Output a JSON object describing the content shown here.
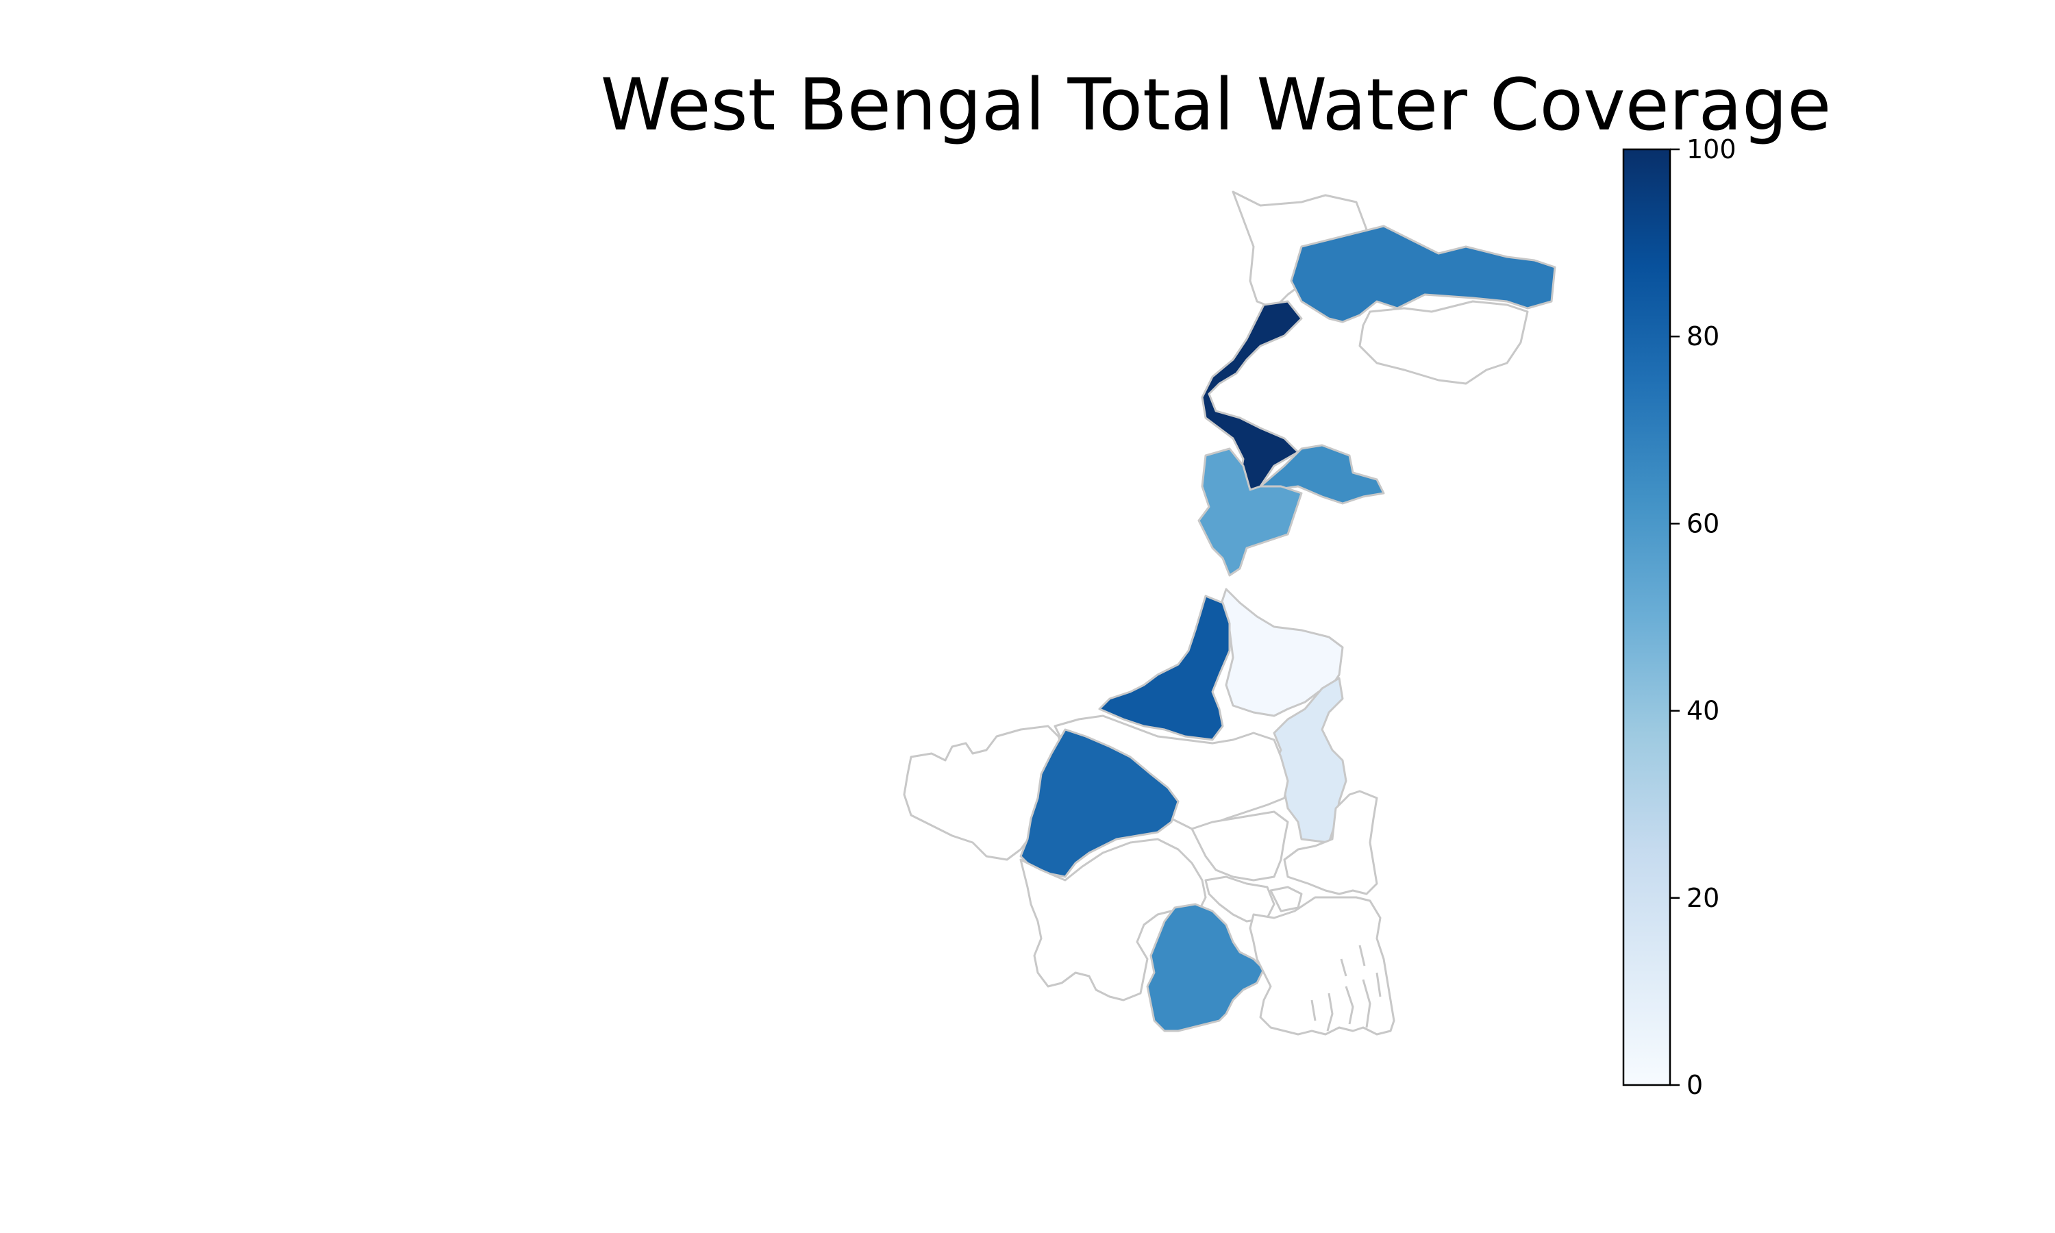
{
  "title": "West Bengal Total Water Coverage",
  "colorbar": {
    "min": 0,
    "max": 100,
    "ticks": [
      "0",
      "20",
      "40",
      "60",
      "80",
      "100"
    ],
    "colormap": "Blues",
    "stops": [
      "#f7fbff",
      "#deebf7",
      "#c6dbef",
      "#9ecae1",
      "#6baed6",
      "#4292c6",
      "#2171b5",
      "#08519c",
      "#08306b"
    ]
  },
  "border_color": "#c8c8c8",
  "districts": [
    {
      "id": "darjeeling",
      "value": null
    },
    {
      "id": "jalpaiguri",
      "value": 71
    },
    {
      "id": "north-dinajpur",
      "value": 100
    },
    {
      "id": "south-dinajpur",
      "value": 64
    },
    {
      "id": "malda",
      "value": 55
    },
    {
      "id": "murshidabad",
      "value": 2
    },
    {
      "id": "nadia",
      "value": 14
    },
    {
      "id": "birbhum",
      "value": 84
    },
    {
      "id": "bankura",
      "value": 79
    },
    {
      "id": "purba-medinipur",
      "value": 65
    },
    {
      "id": "purulia",
      "value": null
    },
    {
      "id": "bardhaman",
      "value": null
    },
    {
      "id": "hooghly",
      "value": null
    },
    {
      "id": "howrah",
      "value": null
    },
    {
      "id": "paschim-medinipur",
      "value": null
    },
    {
      "id": "north-24-parganas",
      "value": null
    },
    {
      "id": "south-24-parganas",
      "value": null
    },
    {
      "id": "kolkata",
      "value": null
    }
  ]
}
